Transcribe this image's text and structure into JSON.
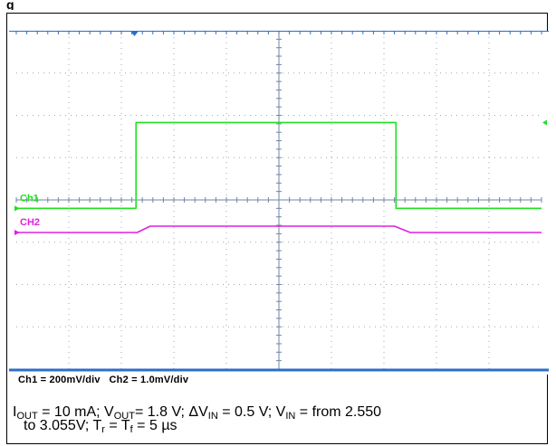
{
  "chart_data": {
    "type": "line",
    "title": "",
    "xlabel": "",
    "ylabel": "",
    "grid": true,
    "grid_divisions": {
      "horizontal": 10,
      "vertical": 8
    },
    "time_axis": {
      "unit": "div",
      "range": [
        0,
        10
      ]
    },
    "series": [
      {
        "name": "Ch1",
        "color": "#22e022",
        "scale": "200mV/div",
        "unit": "div",
        "points": [
          [
            0,
            3.8
          ],
          [
            2.28,
            3.8
          ],
          [
            2.28,
            5.83
          ],
          [
            7.23,
            5.83
          ],
          [
            7.23,
            3.8
          ],
          [
            10,
            3.8
          ]
        ]
      },
      {
        "name": "CH2",
        "color": "#e020e0",
        "scale": "1.0mV/div",
        "unit": "div",
        "points": [
          [
            0,
            3.23
          ],
          [
            2.3,
            3.23
          ],
          [
            2.55,
            3.38
          ],
          [
            7.2,
            3.38
          ],
          [
            7.5,
            3.23
          ],
          [
            10,
            3.23
          ]
        ]
      }
    ],
    "annotations": {
      "scale_readout": "Ch1 = 200mV/div   Ch2 = 1.0mV/div"
    }
  },
  "caption": {
    "i_out": "I",
    "i_out_sub": "OUT",
    "part1": " = 10 mA; V",
    "v_out_sub": "OUT",
    "part2": "= 1.8 V;  ΔV",
    "dvin_sub": "IN",
    "part3": " = 0.5 V; V",
    "vin_sub": "IN",
    "part4": " = from 2.550",
    "line2_a": "to 3.055V; T",
    "tr_sub": "r",
    "line2_b": " = T",
    "tf_sub": "f",
    "line2_c": " = 5 µs"
  },
  "heading": "g"
}
